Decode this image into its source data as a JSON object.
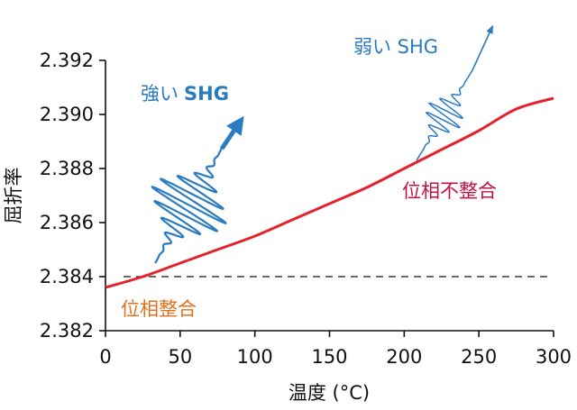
{
  "chart_data": {
    "type": "line",
    "title": "",
    "xlabel": "温度 (°C)",
    "ylabel": "屈折率",
    "xlim": [
      0,
      300
    ],
    "ylim": [
      2.382,
      2.392
    ],
    "xticks": [
      0,
      50,
      100,
      150,
      200,
      250,
      300
    ],
    "yticks": [
      2.382,
      2.384,
      2.386,
      2.388,
      2.39,
      2.392
    ],
    "grid": false,
    "series": [
      {
        "color": "#e3232c",
        "x": [
          0,
          25,
          50,
          75,
          100,
          125,
          150,
          175,
          200,
          225,
          250,
          275,
          300
        ],
        "y": [
          2.3836,
          2.384,
          2.3845,
          2.385,
          2.3855,
          2.3861,
          2.3867,
          2.3873,
          2.388,
          2.3887,
          2.3894,
          2.3902,
          2.3906
        ]
      }
    ],
    "reference_line": {
      "y": 2.384,
      "style": "dashed",
      "color": "#111111"
    },
    "annotations": [
      {
        "text": "強い",
        "bold_suffix": "SHG",
        "color": "#2a7bc0"
      },
      {
        "text": "弱い SHG",
        "color": "#2a7bc0"
      },
      {
        "text": "位相不整合",
        "color": "#c4103f"
      },
      {
        "text": "位相整合",
        "color": "#e2711d"
      }
    ]
  }
}
